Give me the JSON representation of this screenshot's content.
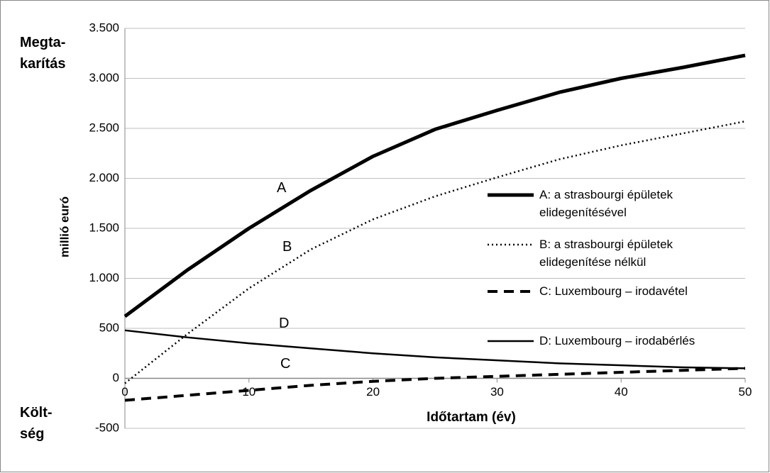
{
  "chart_data": {
    "type": "line",
    "y_label": "millió euró",
    "x_label": "Időtartam (év)",
    "annotations": [
      {
        "text": "Megta-\nkarítás"
      },
      {
        "text": "Költ-\nség"
      },
      {
        "text": "A"
      },
      {
        "text": "B"
      },
      {
        "text": "D"
      },
      {
        "text": "C"
      }
    ],
    "x": [
      0,
      5,
      10,
      15,
      20,
      25,
      30,
      35,
      40,
      45,
      50
    ],
    "series": [
      {
        "name": "A: a strasbourgi épületek elidegenítésével",
        "color": "#000000",
        "style": "solid",
        "line_width": 5,
        "values": [
          620,
          1080,
          1500,
          1880,
          2220,
          2490,
          2680,
          2860,
          3000,
          3110,
          3230
        ]
      },
      {
        "name": "B: a strasbourgi épületek elidegenítése nélkül",
        "color": "#000000",
        "style": "dotted",
        "line_width": 2.5,
        "values": [
          -50,
          440,
          900,
          1290,
          1590,
          1820,
          2010,
          2190,
          2330,
          2450,
          2570
        ]
      },
      {
        "name": "C: Luxembourg – irodavétel",
        "color": "#000000",
        "style": "dashed",
        "line_width": 4,
        "values": [
          -220,
          -170,
          -120,
          -70,
          -30,
          0,
          20,
          40,
          60,
          80,
          100
        ]
      },
      {
        "name": "D: Luxembourg – irodabérlés",
        "color": "#000000",
        "style": "solid",
        "line_width": 2.5,
        "values": [
          480,
          410,
          350,
          300,
          250,
          210,
          180,
          150,
          130,
          110,
          100
        ]
      }
    ],
    "xlim": [
      0,
      50
    ],
    "xticks": [
      0,
      10,
      20,
      30,
      40,
      50
    ],
    "ylim": [
      -500,
      3500
    ],
    "yticks": [
      -500,
      0,
      500,
      {
        "value": 1000,
        "label": "1.000"
      },
      {
        "value": 1500,
        "label": "1.500"
      },
      {
        "value": 2000,
        "label": "2.000"
      },
      {
        "value": 2500,
        "label": "2.500"
      },
      {
        "value": 3000,
        "label": "3.000"
      },
      {
        "value": 3500,
        "label": "3.500"
      }
    ],
    "grid": true,
    "legend": "right"
  }
}
